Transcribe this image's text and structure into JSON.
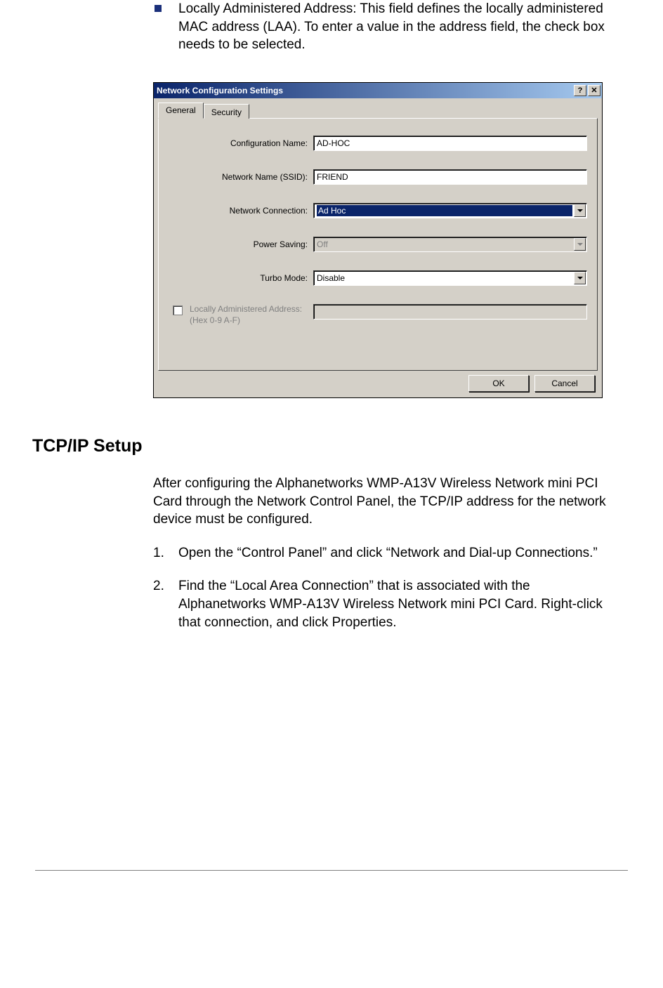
{
  "bullet": {
    "text": "Locally Administered Address: This field defines the locally administered MAC address (LAA). To enter a value in the address field, the check box needs to be selected."
  },
  "dialog": {
    "title": "Network Configuration Settings",
    "help_glyph": "?",
    "close_glyph": "✕",
    "tabs": {
      "general": "General",
      "security": "Security"
    },
    "fields": {
      "config_name": {
        "label": "Configuration Name:",
        "value": "AD-HOC"
      },
      "ssid": {
        "label": "Network Name (SSID):",
        "value": "FRIEND"
      },
      "connection": {
        "label": "Network Connection:",
        "value": "Ad Hoc"
      },
      "power": {
        "label": "Power Saving:",
        "value": "Off"
      },
      "turbo": {
        "label": "Turbo Mode:",
        "value": "Disable"
      },
      "laa": {
        "label": "Locally Administered Address: (Hex 0-9 A-F)",
        "value": ""
      }
    },
    "buttons": {
      "ok": "OK",
      "cancel": "Cancel"
    }
  },
  "section": {
    "heading": "TCP/IP Setup",
    "intro": "After configuring the Alphanetworks WMP-A13V Wireless Network mini PCI Card through the Network Control Panel, the TCP/IP address for the network device must be configured.",
    "steps": [
      {
        "num": "1.",
        "text": "Open the “Control Panel” and click “Network and Dial-up Connections.”"
      },
      {
        "num": "2.",
        "text": "Find the “Local Area Connection” that is associated with the Alphanetworks WMP-A13V Wireless Network mini PCI Card. Right-click that connection, and click Properties."
      }
    ]
  },
  "colors": {
    "bullet_square": "#1a2f7a",
    "titlebar_start": "#0a246a",
    "titlebar_end": "#a6caf0",
    "dialog_bg": "#d4d0c8"
  }
}
